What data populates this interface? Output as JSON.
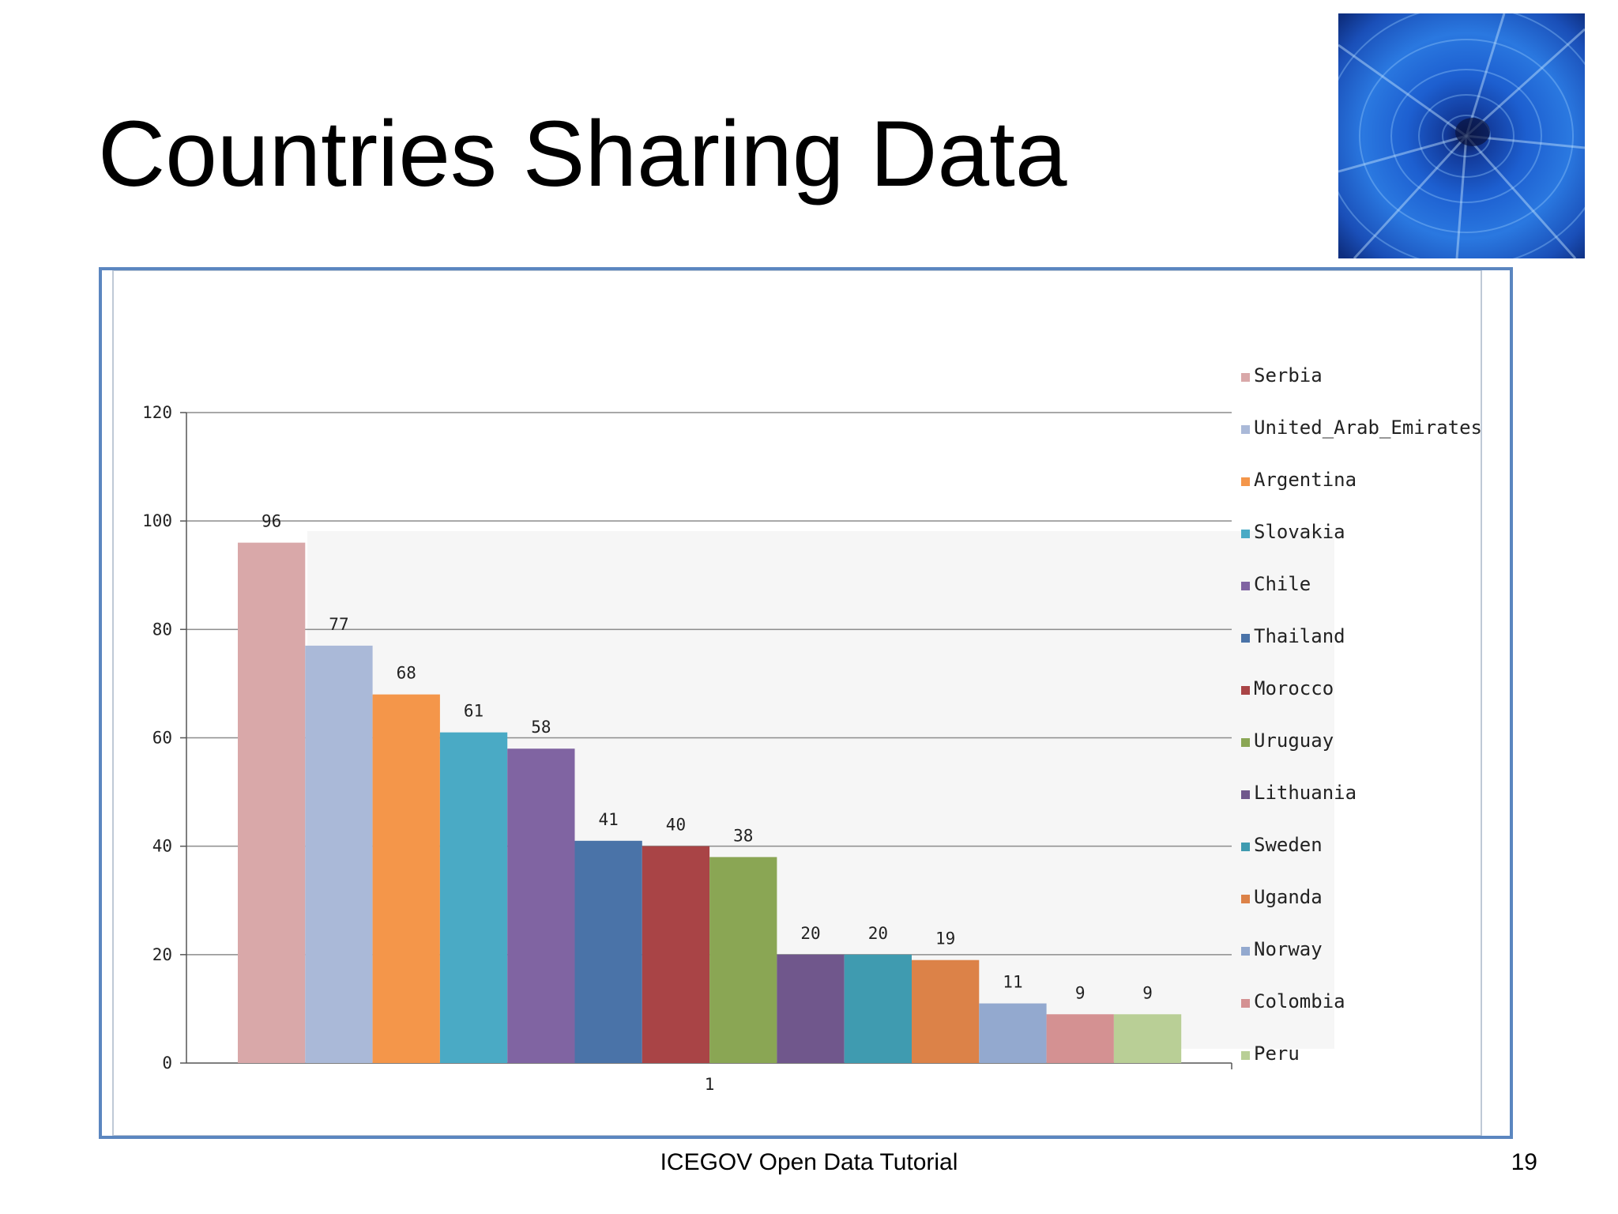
{
  "slide": {
    "title": "Countries Sharing Data",
    "footer": "ICEGOV Open Data Tutorial",
    "page_number": "19"
  },
  "chart_data": {
    "type": "bar",
    "categories": [
      "1"
    ],
    "series": [
      {
        "name": "Serbia",
        "values": [
          96
        ],
        "color": "#d9a8a9"
      },
      {
        "name": "United_Arab_Emirates",
        "values": [
          77
        ],
        "color": "#aab9d8"
      },
      {
        "name": "Argentina",
        "values": [
          68
        ],
        "color": "#f4964a"
      },
      {
        "name": "Slovakia",
        "values": [
          61
        ],
        "color": "#4aaac5"
      },
      {
        "name": "Chile",
        "values": [
          58
        ],
        "color": "#8064a2"
      },
      {
        "name": "Thailand",
        "values": [
          41
        ],
        "color": "#4a73a8"
      },
      {
        "name": "Morocco",
        "values": [
          40
        ],
        "color": "#a94446"
      },
      {
        "name": "Uruguay",
        "values": [
          38
        ],
        "color": "#8aa654"
      },
      {
        "name": "Lithuania",
        "values": [
          20
        ],
        "color": "#70578c"
      },
      {
        "name": "Sweden",
        "values": [
          20
        ],
        "color": "#3f9bb0"
      },
      {
        "name": "Uganda",
        "values": [
          19
        ],
        "color": "#dc8248"
      },
      {
        "name": "Norway",
        "values": [
          11
        ],
        "color": "#93a9cf"
      },
      {
        "name": "Colombia",
        "values": [
          9
        ],
        "color": "#d49192"
      },
      {
        "name": "Peru",
        "values": [
          9
        ],
        "color": "#b9cf96"
      }
    ],
    "yticks": [
      0,
      20,
      40,
      60,
      80,
      100,
      120
    ],
    "ylim": [
      0,
      120
    ],
    "grid": true,
    "legend_position": "right",
    "data_labels": true,
    "title": "",
    "xlabel": "",
    "ylabel": ""
  }
}
